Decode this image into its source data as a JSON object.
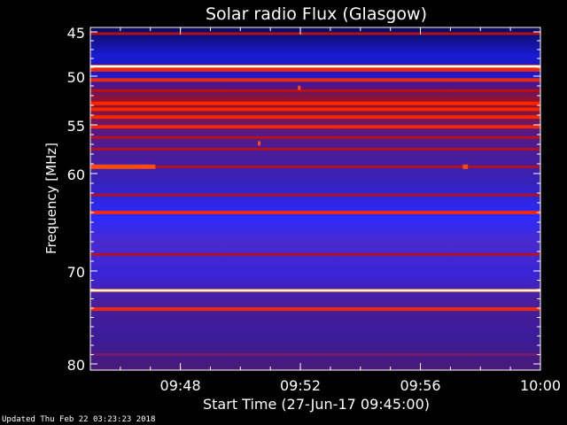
{
  "chart_data": {
    "type": "heatmap",
    "title": "Solar radio Flux (Glasgow)",
    "xlabel": "Start Time (27-Jun-17 09:45:00)",
    "ylabel": "Frequency [MHz]",
    "x_range": [
      "09:45:00",
      "10:00:00"
    ],
    "x_ticks": [
      "09:48",
      "09:52",
      "09:56",
      "10:00"
    ],
    "y_range": [
      45,
      80
    ],
    "y_scale": "inverted",
    "y_ticks": [
      45,
      50,
      55,
      60,
      70,
      80
    ],
    "colormap": [
      "#000000",
      "#1a0a3a",
      "#1f14c8",
      "#3a2aff",
      "#6a1a8a",
      "#b00000",
      "#ff3000",
      "#ff9030",
      "#ffffff"
    ],
    "bands": [
      {
        "freq_mhz": 45.2,
        "intensity": "medium"
      },
      {
        "freq_mhz": 48.9,
        "intensity": "very high"
      },
      {
        "freq_mhz": 49.3,
        "intensity": "high"
      },
      {
        "freq_mhz": 50.4,
        "intensity": "high"
      },
      {
        "freq_mhz": 51.5,
        "intensity": "medium"
      },
      {
        "freq_mhz": 52.8,
        "intensity": "high"
      },
      {
        "freq_mhz": 53.4,
        "intensity": "high"
      },
      {
        "freq_mhz": 54.2,
        "intensity": "high"
      },
      {
        "freq_mhz": 55.2,
        "intensity": "high"
      },
      {
        "freq_mhz": 56.3,
        "intensity": "medium"
      },
      {
        "freq_mhz": 57.5,
        "intensity": "medium"
      },
      {
        "freq_mhz": 59.3,
        "intensity": "medium"
      },
      {
        "freq_mhz": 62.2,
        "intensity": "medium"
      },
      {
        "freq_mhz": 64.0,
        "intensity": "high"
      },
      {
        "freq_mhz": 68.3,
        "intensity": "medium"
      },
      {
        "freq_mhz": 72.1,
        "intensity": "very high"
      },
      {
        "freq_mhz": 74.1,
        "intensity": "high"
      },
      {
        "freq_mhz": 79.0,
        "intensity": "low"
      }
    ],
    "bursts": [
      {
        "start": "09:45:00",
        "end": "09:47:10",
        "freq_mhz": 59.3
      },
      {
        "start": "09:57:25",
        "end": "09:57:35",
        "freq_mhz": 59.3
      },
      {
        "start": "09:51:55",
        "end": "09:52:00",
        "freq_mhz": 51.2
      },
      {
        "start": "09:50:35",
        "end": "09:50:40",
        "freq_mhz": 56.9
      }
    ]
  },
  "footer": "Updated Thu Feb 22 03:23:23 2018",
  "colors": {
    "background": "#000000",
    "axis": "#ffffff",
    "text": "#ffffff"
  }
}
